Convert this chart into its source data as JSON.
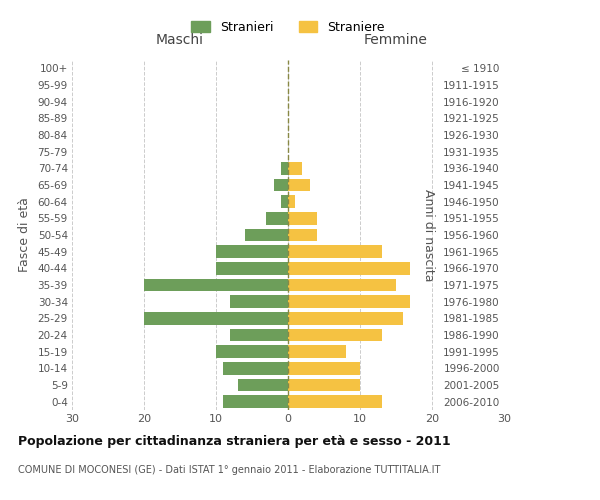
{
  "age_groups": [
    "0-4",
    "5-9",
    "10-14",
    "15-19",
    "20-24",
    "25-29",
    "30-34",
    "35-39",
    "40-44",
    "45-49",
    "50-54",
    "55-59",
    "60-64",
    "65-69",
    "70-74",
    "75-79",
    "80-84",
    "85-89",
    "90-94",
    "95-99",
    "100+"
  ],
  "birth_years": [
    "2006-2010",
    "2001-2005",
    "1996-2000",
    "1991-1995",
    "1986-1990",
    "1981-1985",
    "1976-1980",
    "1971-1975",
    "1966-1970",
    "1961-1965",
    "1956-1960",
    "1951-1955",
    "1946-1950",
    "1941-1945",
    "1936-1940",
    "1931-1935",
    "1926-1930",
    "1921-1925",
    "1916-1920",
    "1911-1915",
    "≤ 1910"
  ],
  "males": [
    9,
    7,
    9,
    10,
    8,
    20,
    8,
    20,
    10,
    10,
    6,
    3,
    1,
    2,
    1,
    0,
    0,
    0,
    0,
    0,
    0
  ],
  "females": [
    13,
    10,
    10,
    8,
    13,
    16,
    17,
    15,
    17,
    13,
    4,
    4,
    1,
    3,
    2,
    0,
    0,
    0,
    0,
    0,
    0
  ],
  "male_color": "#6d9e5a",
  "female_color": "#f5c242",
  "title": "Popolazione per cittadinanza straniera per età e sesso - 2011",
  "subtitle": "COMUNE DI MOCONESI (GE) - Dati ISTAT 1° gennaio 2011 - Elaborazione TUTTITALIA.IT",
  "xlabel_left": "Maschi",
  "xlabel_right": "Femmine",
  "ylabel_left": "Fasce di età",
  "ylabel_right": "Anni di nascita",
  "legend_male": "Stranieri",
  "legend_female": "Straniere",
  "xlim": 30,
  "background_color": "#ffffff",
  "grid_color": "#cccccc"
}
